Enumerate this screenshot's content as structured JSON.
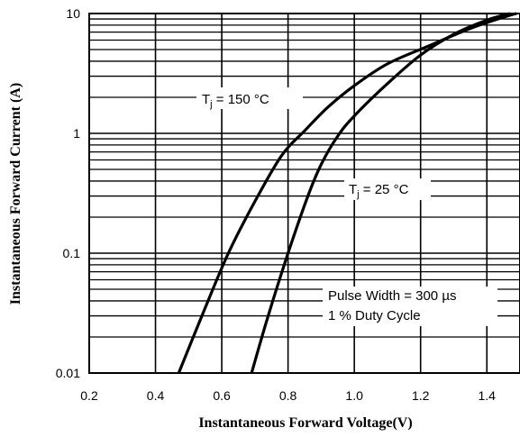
{
  "chart_data": {
    "type": "line",
    "xlabel": "Instantaneous Forward Voltage(V)",
    "ylabel": "Instantaneous Forward Current (A)",
    "x_scale": "linear",
    "y_scale": "log",
    "xlim": [
      0.2,
      1.5
    ],
    "ylim": [
      0.01,
      10
    ],
    "x_ticks": [
      "0.2",
      "0.4",
      "0.6",
      "0.8",
      "1.0",
      "1.2",
      "1.4"
    ],
    "y_ticks": [
      "0.01",
      "0.1",
      "1",
      "10"
    ],
    "grid": true,
    "series": [
      {
        "name": "Tj = 150 °C",
        "label_main": "T",
        "label_sub": "j",
        "label_rest": " = 150 °C",
        "points": [
          [
            0.47,
            0.01
          ],
          [
            0.55,
            0.035
          ],
          [
            0.62,
            0.1
          ],
          [
            0.7,
            0.27
          ],
          [
            0.78,
            0.65
          ],
          [
            0.85,
            1.05
          ],
          [
            0.92,
            1.65
          ],
          [
            1.0,
            2.5
          ],
          [
            1.1,
            3.8
          ],
          [
            1.22,
            5.3
          ],
          [
            1.35,
            7.5
          ],
          [
            1.46,
            9.5
          ],
          [
            1.49,
            10.0
          ]
        ]
      },
      {
        "name": "Tj = 25 °C",
        "label_main": "T",
        "label_sub": "j",
        "label_rest": " = 25 °C",
        "points": [
          [
            0.69,
            0.01
          ],
          [
            0.74,
            0.03
          ],
          [
            0.8,
            0.1
          ],
          [
            0.86,
            0.3
          ],
          [
            0.9,
            0.55
          ],
          [
            0.95,
            0.95
          ],
          [
            1.0,
            1.4
          ],
          [
            1.1,
            2.6
          ],
          [
            1.2,
            4.5
          ],
          [
            1.3,
            6.7
          ],
          [
            1.4,
            8.8
          ],
          [
            1.47,
            10.0
          ]
        ]
      }
    ],
    "annotations": [
      "Pulse Width = 300 µs",
      "1 % Duty Cycle"
    ]
  }
}
